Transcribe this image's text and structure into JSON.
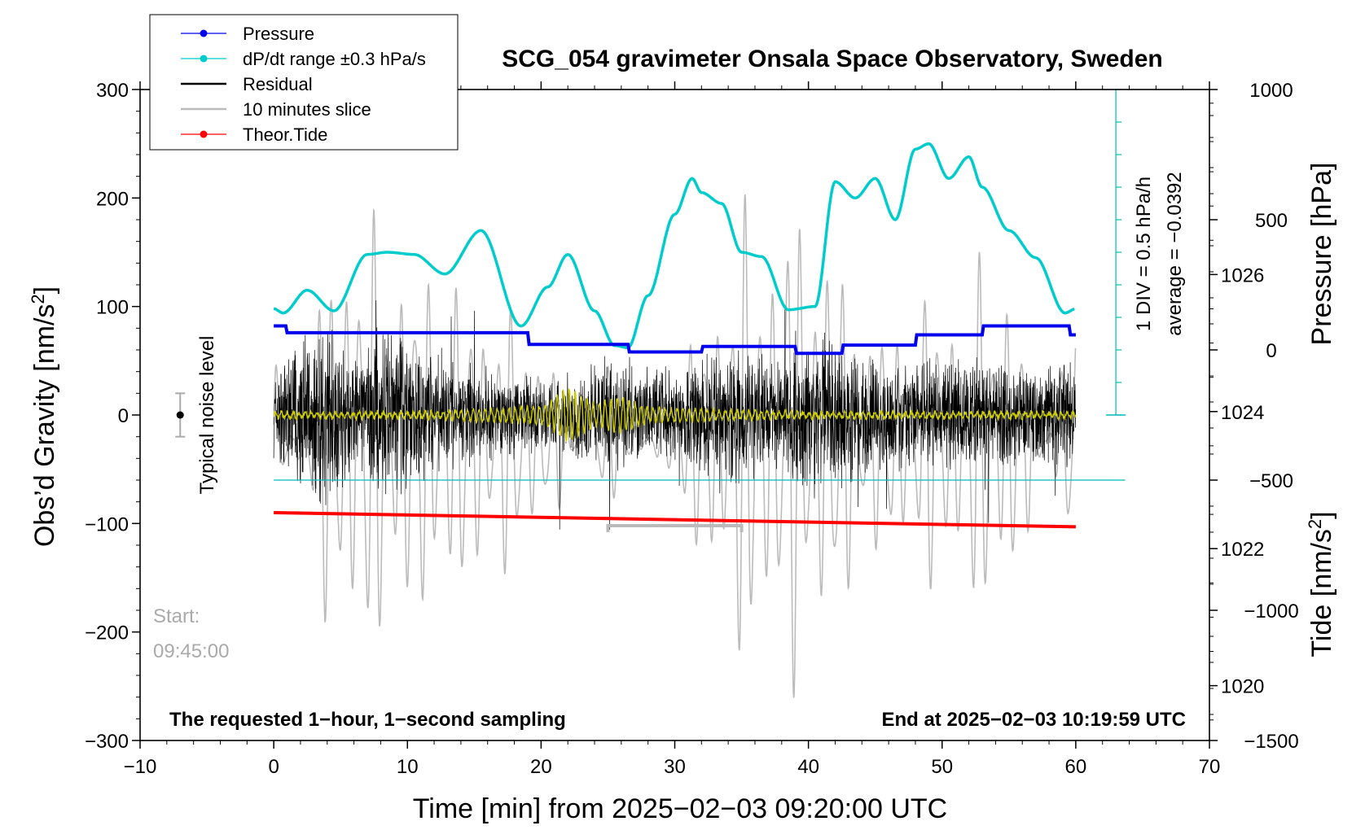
{
  "chart_data": {
    "type": "line",
    "title": "SCG_054 gravimeter Onsala Space Observatory, Sweden",
    "xlabel": "Time [min] from 2025−02−03 09:20:00 UTC",
    "ylabel_left_main": "Obs’d Gravity [nm/s",
    "ylabel_left_sup": "2",
    "ylabel_left_end": "]",
    "ylabel_right_pressure": "Pressure [hPa]",
    "ylabel_right_tide_main": "Tide [nm/s",
    "ylabel_right_tide_sup": "2",
    "ylabel_right_tide_end": "]",
    "xlim": [
      -10,
      70
    ],
    "ylim": [
      -300,
      300
    ],
    "pressure_lim": [
      1019.2,
      1028.7
    ],
    "tide_lim": [
      -1500,
      1000
    ],
    "x_ticks": [
      -10,
      0,
      10,
      20,
      30,
      40,
      50,
      60,
      70
    ],
    "x_tick_labels": [
      "−10",
      "0",
      "10",
      "20",
      "30",
      "40",
      "50",
      "60",
      "70"
    ],
    "y_ticks": [
      -300,
      -200,
      -100,
      0,
      100,
      200,
      300
    ],
    "y_tick_labels": [
      "−300",
      "−200",
      "−100",
      "0",
      "100",
      "200",
      "300"
    ],
    "pressure_ticks": [
      1020,
      1022,
      1024,
      1026
    ],
    "pressure_tick_labels": [
      "1020",
      "1022",
      "1024",
      "1026"
    ],
    "tide_ticks": [
      -1500,
      -1000,
      -500,
      0,
      500,
      1000
    ],
    "tide_tick_labels": [
      "−1500",
      "−1000",
      "−500",
      "0",
      "500",
      "1000"
    ],
    "legend": [
      {
        "label": "Pressure",
        "color": "#0000ee",
        "marker": true
      },
      {
        "label": "dP/dt range ±0.3 hPa/s",
        "color": "#00cccc",
        "marker": true
      },
      {
        "label": "Residual",
        "color": "#000000",
        "marker": false
      },
      {
        "label": "10 minutes slice",
        "color": "#bbbbbb",
        "marker": false
      },
      {
        "label": "Theor.Tide",
        "color": "#ff0000",
        "marker": true
      }
    ],
    "series": [
      {
        "name": "Pressure",
        "axis": "pressure",
        "color": "#0000ee",
        "x": [
          0,
          0.9,
          1.0,
          19.0,
          19.1,
          26.5,
          26.6,
          32.0,
          32.1,
          39.0,
          39.1,
          42.5,
          42.6,
          48.0,
          48.1,
          53.0,
          53.1,
          59.5,
          59.6,
          60
        ],
        "values": [
          1025.25,
          1025.25,
          1025.15,
          1025.15,
          1024.98,
          1024.98,
          1024.87,
          1024.87,
          1024.95,
          1024.95,
          1024.85,
          1024.85,
          1024.97,
          1024.97,
          1025.12,
          1025.12,
          1025.25,
          1025.25,
          1025.12,
          1025.12
        ]
      },
      {
        "name": "dP/dt range ±0.3 hPa/s",
        "axis": "left",
        "color": "#00cccc",
        "x": [
          0,
          0.7,
          2.5,
          4.5,
          7,
          8.5,
          10.5,
          12.8,
          15.5,
          18.5,
          20.5,
          22,
          24,
          25.5,
          26.5,
          28,
          30,
          31.3,
          32,
          33.5,
          35,
          36.5,
          38.5,
          40.5,
          42,
          43.5,
          45,
          46.5,
          48,
          49,
          50.5,
          52,
          53,
          55,
          57,
          59.2,
          60
        ],
        "values": [
          98,
          94,
          115,
          96,
          148,
          150,
          148,
          130,
          170,
          82,
          118,
          148,
          96,
          64,
          62,
          110,
          185,
          218,
          205,
          195,
          150,
          146,
          97,
          100,
          215,
          200,
          218,
          180,
          245,
          250,
          218,
          238,
          210,
          170,
          145,
          94,
          98
        ]
      },
      {
        "name": "Residual",
        "axis": "left",
        "color": "#000000",
        "x": [
          0,
          2,
          4,
          6,
          8,
          10,
          12,
          14,
          16,
          18,
          20,
          22,
          24,
          26,
          28,
          30,
          32,
          34,
          36,
          38,
          40,
          42,
          44,
          46,
          48,
          50,
          52,
          54,
          56,
          58,
          60
        ],
        "values": [
          30,
          60,
          70,
          40,
          65,
          55,
          45,
          40,
          35,
          30,
          25,
          30,
          35,
          40,
          38,
          35,
          45,
          55,
          45,
          40,
          60,
          55,
          42,
          40,
          38,
          40,
          45,
          38,
          42,
          40,
          45
        ],
        "note": "amplitude envelope of the residual noise about zero"
      },
      {
        "name": "Theor.Tide",
        "axis": "left",
        "color": "#ff0000",
        "x": [
          0,
          60
        ],
        "values": [
          -90,
          -103
        ]
      },
      {
        "name": "10 minutes slice",
        "axis": "tide",
        "color": "#bbbbbb",
        "x": [
          0,
          5,
          10,
          15,
          20,
          25,
          30,
          35,
          40,
          45,
          50,
          55,
          60
        ],
        "values": [
          -250,
          650,
          500,
          400,
          300,
          -200,
          150,
          600,
          650,
          300,
          400,
          500,
          -400
        ],
        "note": "peak amplitude envelope of the gray slice"
      },
      {
        "name": "Filtered residual",
        "axis": "left",
        "color": "#cccc00",
        "x": [
          0,
          10,
          20,
          22,
          24,
          26,
          28,
          40,
          60
        ],
        "values": [
          0,
          0,
          5,
          22,
          8,
          14,
          4,
          0,
          0
        ]
      }
    ],
    "pressure_reference_level": 1023,
    "pressure_scale_bar": {
      "text1": "1 DIV = 0.5 hPa/h",
      "text2": "average = −0.0392"
    },
    "noise_bar": {
      "label": "Typical noise level",
      "x": -7,
      "half_range": 20
    },
    "slice_indicator": {
      "x_start": 25,
      "x_end": 35,
      "y": -102
    },
    "annotations": {
      "start_label": "Start:",
      "start_time": "09:45:00",
      "bottom_left": "The requested 1−hour, 1−second sampling",
      "bottom_right": "End at 2025−02−03 10:19:59 UTC"
    },
    "grid": false
  }
}
